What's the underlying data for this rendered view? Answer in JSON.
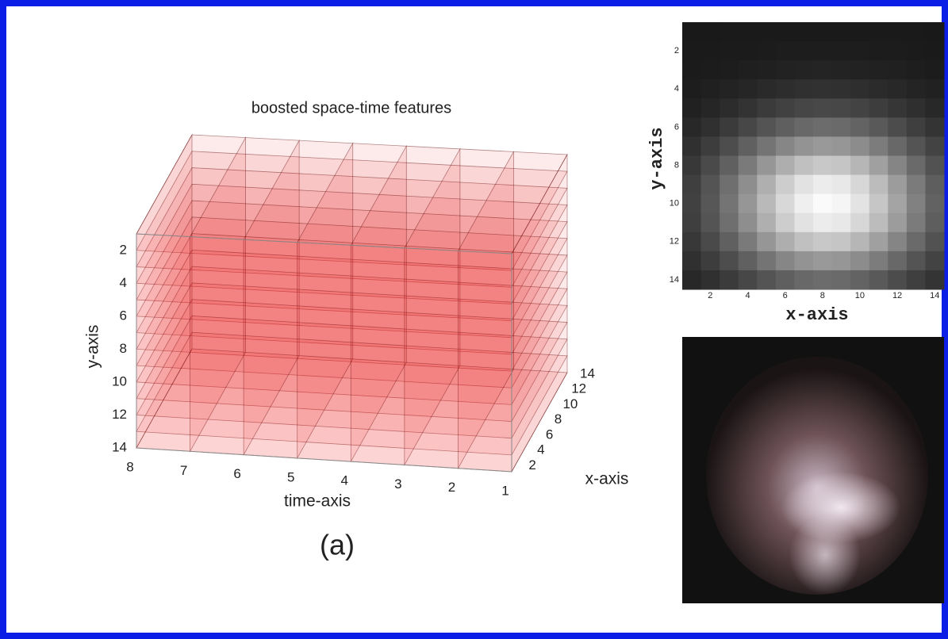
{
  "figure": {
    "plot3d": {
      "title": "boosted space-time features",
      "y_label": "y-axis",
      "time_label": "time-axis",
      "x_label": "x-axis",
      "y_ticks": [
        "2",
        "4",
        "6",
        "8",
        "10",
        "12",
        "14"
      ],
      "time_ticks": [
        "8",
        "7",
        "6",
        "5",
        "4",
        "3",
        "2",
        "1"
      ],
      "x_ticks": [
        "2",
        "4",
        "6",
        "8",
        "10",
        "12",
        "14"
      ]
    },
    "heatmap": {
      "y_label": "y-axis",
      "x_label": "x-axis",
      "y_ticks": [
        "2",
        "4",
        "6",
        "8",
        "10",
        "12",
        "14"
      ],
      "x_ticks": [
        "2",
        "4",
        "6",
        "8",
        "10",
        "12",
        "14"
      ]
    },
    "caption": "(a)"
  }
}
